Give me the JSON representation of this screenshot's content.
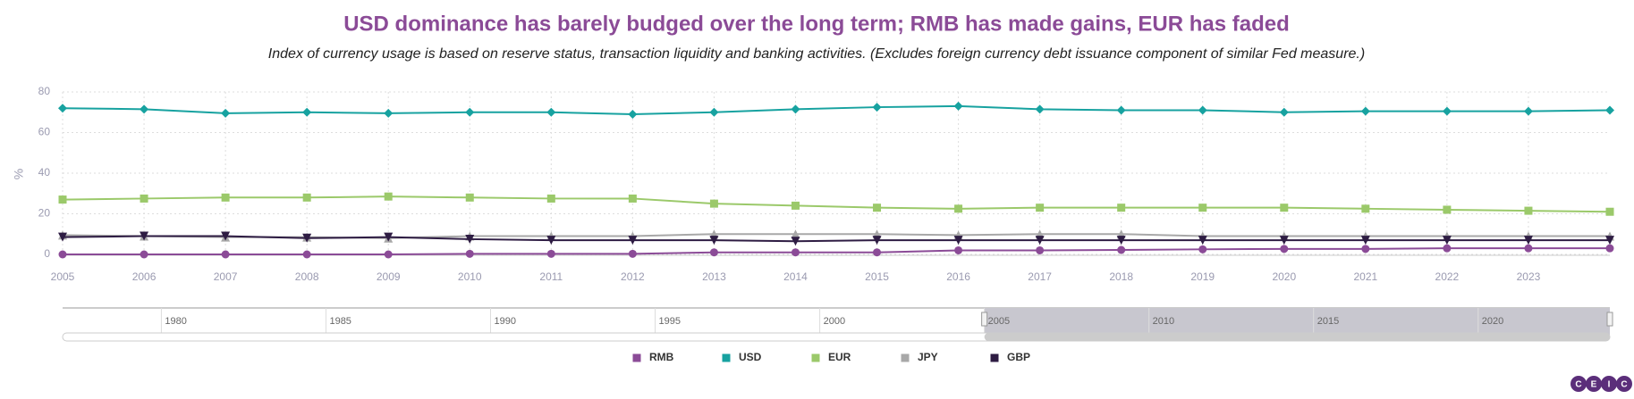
{
  "chart_data": {
    "type": "line",
    "title": "USD dominance has barely budged over the long term; RMB has made gains, EUR has faded",
    "subtitle": "Index of currency usage is based on reserve status, transaction liquidity and banking activities. (Excludes foreign currency debt issuance component of similar Fed measure.)",
    "y_label": "%",
    "x": [
      2005,
      2006,
      2007,
      2008,
      2009,
      2010,
      2011,
      2012,
      2013,
      2014,
      2015,
      2016,
      2017,
      2018,
      2019,
      2020,
      2021,
      2022,
      2023,
      2024
    ],
    "xlim": [
      2005,
      2024
    ],
    "xticks": [
      2005,
      2006,
      2007,
      2008,
      2009,
      2010,
      2011,
      2012,
      2013,
      2014,
      2015,
      2016,
      2017,
      2018,
      2019,
      2020,
      2021,
      2022,
      2023
    ],
    "ylim": [
      0,
      80
    ],
    "yticks": [
      0,
      20,
      40,
      60,
      80
    ],
    "grid": true,
    "series": [
      {
        "name": "RMB",
        "color": "#8b4b97",
        "marker": "circle",
        "values": [
          0,
          0,
          0,
          0,
          0,
          0.3,
          0.3,
          0.3,
          1,
          1,
          1,
          2,
          2,
          2.2,
          2.5,
          2.7,
          2.7,
          3,
          3,
          3
        ]
      },
      {
        "name": "USD",
        "color": "#17a2a0",
        "marker": "diamond",
        "values": [
          72,
          71.5,
          69.5,
          70,
          69.5,
          70,
          70,
          69,
          70,
          71.5,
          72.5,
          73,
          71.5,
          71,
          71,
          70,
          70.5,
          70.5,
          70.5,
          71
        ]
      },
      {
        "name": "EUR",
        "color": "#9bc96a",
        "marker": "square",
        "values": [
          27,
          27.5,
          28,
          28,
          28.5,
          28,
          27.5,
          27.5,
          25,
          24,
          23,
          22.5,
          23,
          23,
          23,
          23,
          22.5,
          22,
          21.5,
          21
        ]
      },
      {
        "name": "JPY",
        "color": "#a8a8a8",
        "marker": "triangle",
        "values": [
          9.5,
          9,
          8.5,
          8.5,
          8,
          9,
          9,
          9,
          10,
          10,
          10,
          9.5,
          10,
          10,
          9,
          9,
          9,
          9,
          9,
          9
        ]
      },
      {
        "name": "GBP",
        "color": "#2e1c43",
        "marker": "triangle-down",
        "values": [
          8.5,
          9,
          9,
          8,
          8.5,
          7.5,
          7,
          7,
          7,
          6.5,
          7,
          7,
          7,
          7,
          7,
          7,
          7,
          7,
          7,
          7
        ]
      }
    ],
    "navigator": {
      "xlim": [
        1977,
        2024
      ],
      "xticks": [
        1980,
        1985,
        1990,
        1995,
        2000,
        2005,
        2010,
        2015,
        2020
      ],
      "range": [
        2005,
        2024
      ]
    },
    "logo": [
      "C",
      "E",
      "I",
      "C"
    ]
  }
}
